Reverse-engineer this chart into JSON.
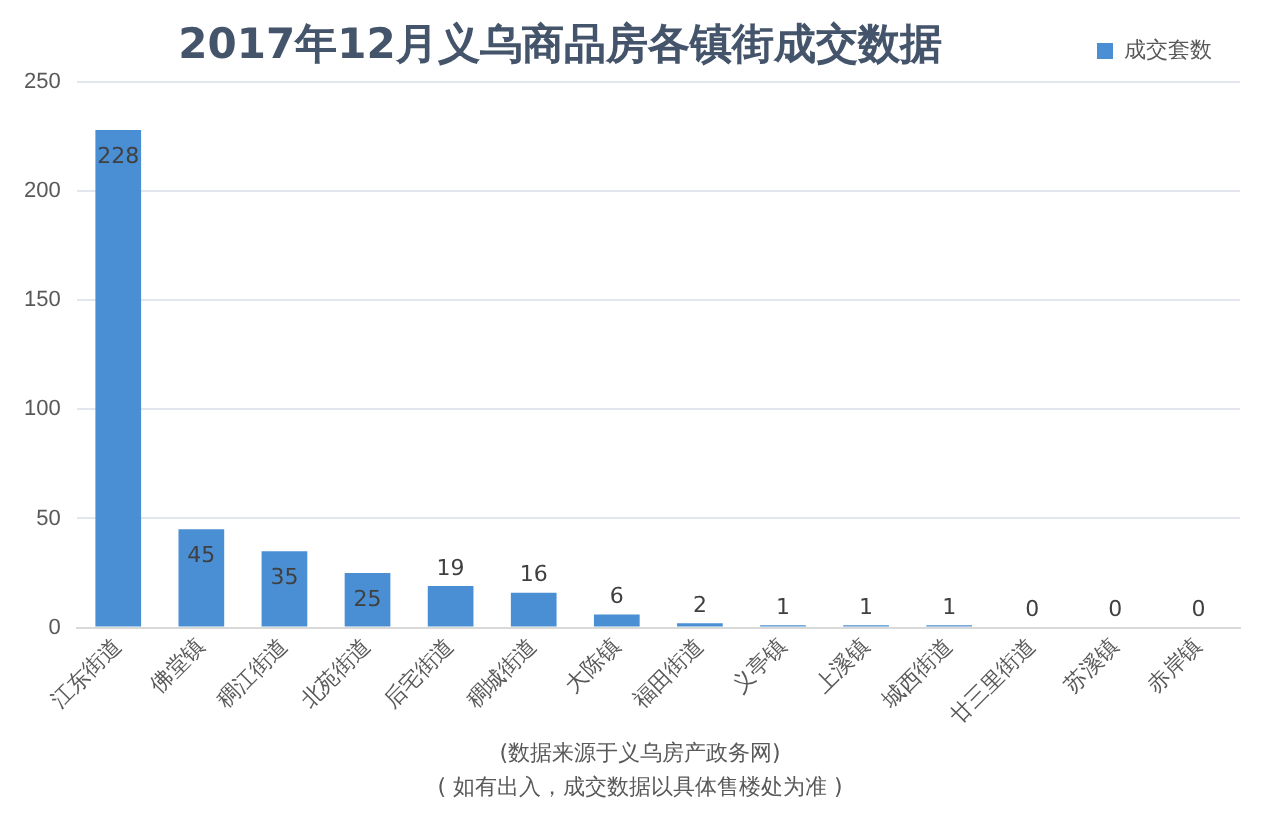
{
  "chart_data": {
    "type": "bar",
    "title": "2017年12月义乌商品房各镇街成交数据",
    "categories": [
      "江东街道",
      "佛堂镇",
      "稠江街道",
      "北苑街道",
      "后宅街道",
      "稠城街道",
      "大陈镇",
      "福田街道",
      "义亭镇",
      "上溪镇",
      "城西街道",
      "廿三里街道",
      "苏溪镇",
      "赤岸镇"
    ],
    "series": [
      {
        "name": "成交套数",
        "color": "#4a8fd4",
        "values": [
          228,
          45,
          35,
          25,
          19,
          16,
          6,
          2,
          1,
          1,
          1,
          0,
          0,
          0
        ]
      }
    ],
    "ylim": [
      0,
      250
    ],
    "yticks": [
      0,
      50,
      100,
      150,
      200,
      250
    ],
    "grid": "y",
    "legend": "top right",
    "data_labels": true,
    "annotations": [
      "(数据来源于义乌房产政务网)",
      "( 如有出入，成交数据以具体售楼处为准 )"
    ]
  }
}
